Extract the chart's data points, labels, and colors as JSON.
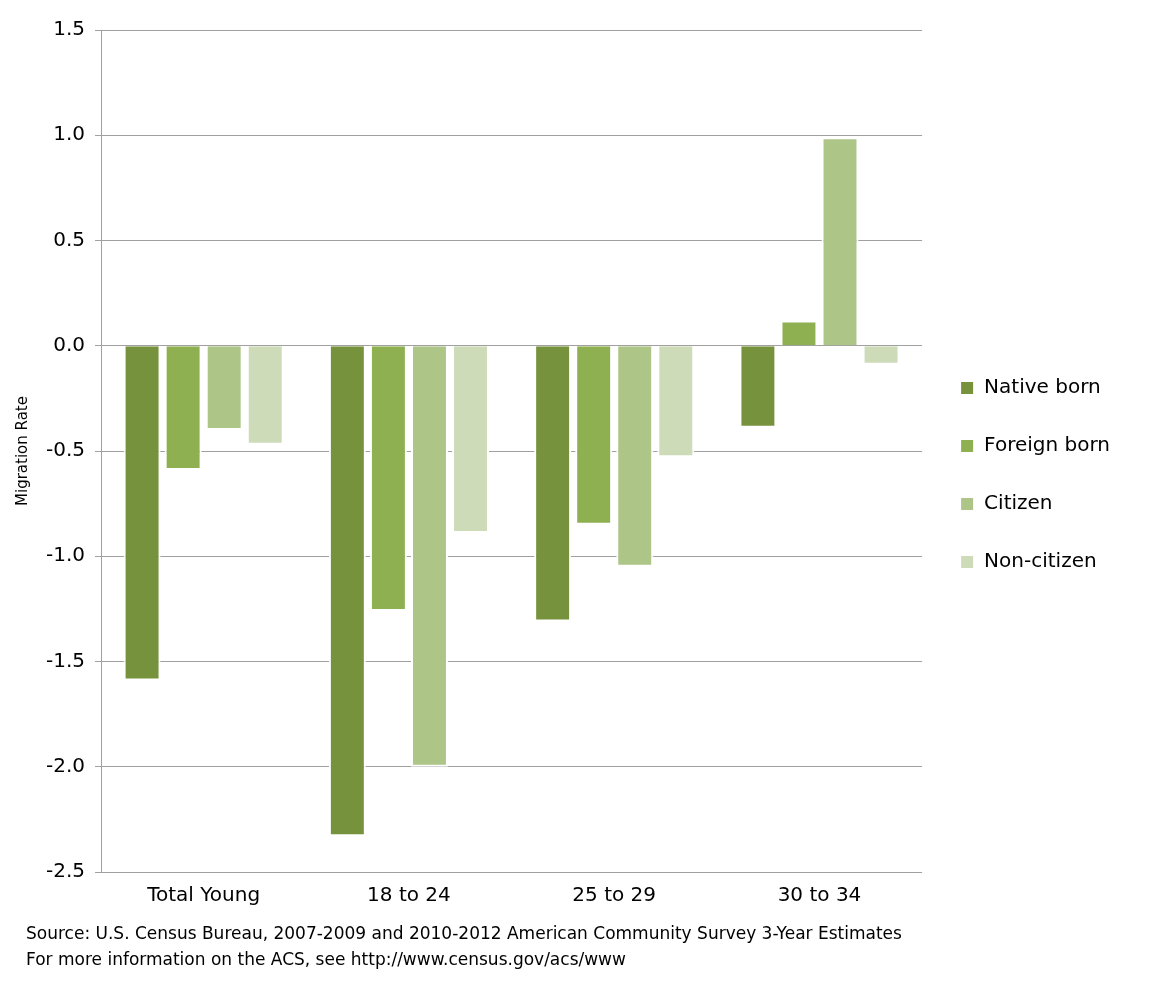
{
  "chart_data": {
    "type": "bar",
    "ylabel": "Migration Rate",
    "categories": [
      "Total Young",
      "18 to 24",
      "25 to 29",
      "30 to 34"
    ],
    "series": [
      {
        "name": "Native born",
        "color": "#77923c",
        "values": [
          -1.59,
          -2.33,
          -1.31,
          -0.39
        ]
      },
      {
        "name": "Foreign born",
        "color": "#8fb050",
        "values": [
          -0.59,
          -1.26,
          -0.85,
          0.12
        ]
      },
      {
        "name": "Citizen",
        "color": "#adc586",
        "values": [
          -0.4,
          -2.0,
          -1.05,
          0.99
        ]
      },
      {
        "name": "Non-citizen",
        "color": "#cddbb8",
        "values": [
          -0.47,
          -0.89,
          -0.53,
          -0.09
        ]
      }
    ],
    "ylim": [
      -2.5,
      1.5
    ],
    "yticks": [
      {
        "value": -2.5,
        "label": "-2.5"
      },
      {
        "value": -2,
        "label": "-2.0"
      },
      {
        "value": -1.5,
        "label": "-1.5"
      },
      {
        "value": -1,
        "label": "-1.0"
      },
      {
        "value": -0.5,
        "label": "-0.5"
      },
      {
        "value": 0,
        "label": "0.0"
      },
      {
        "value": 0.5,
        "label": "0.5"
      },
      {
        "value": 1,
        "label": "1.0"
      },
      {
        "value": 1.5,
        "label": "1.5"
      }
    ],
    "grid": "y",
    "legend": "right",
    "annotations": [
      "Source:  U.S. Census Bureau, 2007-2009 and 2010-2012 American Community Survey 3-Year Estimates",
      "For more information on the ACS, see http://www.census.gov/acs/www"
    ]
  }
}
